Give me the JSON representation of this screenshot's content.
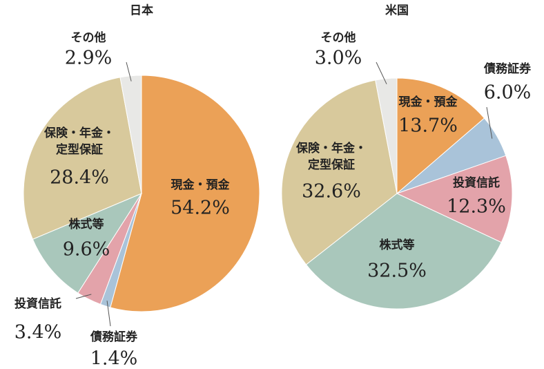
{
  "chart_data": [
    {
      "type": "pie",
      "title": "日本",
      "categories": [
        "現金・預金",
        "債務証券",
        "投資信託",
        "株式等",
        "保険・年金・定型保証",
        "その他"
      ],
      "values": [
        54.2,
        1.4,
        3.4,
        9.6,
        28.4,
        2.9
      ],
      "value_labels": [
        "54.2%",
        "1.4%",
        "3.4%",
        "9.6%",
        "28.4%",
        "2.9%"
      ],
      "colors": [
        "#eba157",
        "#a9c3d9",
        "#e3a3aa",
        "#a9c7bb",
        "#d8c99c",
        "#e8e8e6"
      ]
    },
    {
      "type": "pie",
      "title": "米国",
      "categories": [
        "現金・預金",
        "債務証券",
        "投資信託",
        "株式等",
        "保険・年金・定型保証",
        "その他"
      ],
      "values": [
        13.7,
        6.0,
        12.3,
        32.5,
        32.6,
        3.0
      ],
      "value_labels": [
        "13.7%",
        "6.0%",
        "12.3%",
        "32.5%",
        "32.6%",
        "3.0%"
      ],
      "colors": [
        "#eba157",
        "#a9c3d9",
        "#e3a3aa",
        "#a9c7bb",
        "#d8c99c",
        "#e8e8e6"
      ]
    }
  ]
}
